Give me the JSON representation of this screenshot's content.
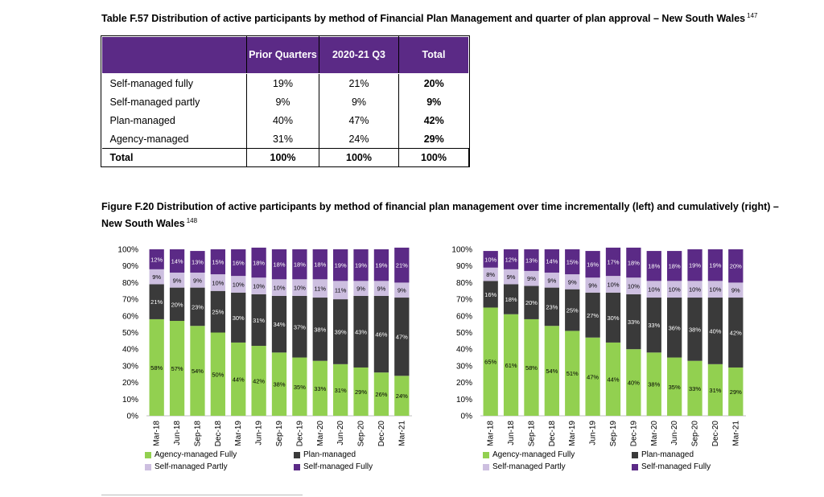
{
  "table": {
    "title": "Table F.57 Distribution of active participants by method of Financial Plan Management and quarter of plan approval – New South Wales",
    "footnote": "147",
    "headers": [
      "",
      "Prior Quarters",
      "2020-21 Q3",
      "Total"
    ],
    "rows": [
      {
        "label": "Self-managed fully",
        "prior": "19%",
        "q3": "21%",
        "total": "20%"
      },
      {
        "label": "Self-managed partly",
        "prior": "9%",
        "q3": "9%",
        "total": "9%"
      },
      {
        "label": "Plan-managed",
        "prior": "40%",
        "q3": "47%",
        "total": "42%"
      },
      {
        "label": "Agency-managed",
        "prior": "31%",
        "q3": "24%",
        "total": "29%"
      }
    ],
    "total_row": {
      "label": "Total",
      "prior": "100%",
      "q3": "100%",
      "total": "100%"
    }
  },
  "figure": {
    "title": "Figure F.20 Distribution of active participants by method of financial plan management over time incrementally (left) and cumulatively (right) – New South Wales",
    "footnote": "148"
  },
  "colors": {
    "agency": "#92d050",
    "plan": "#3a3a3a",
    "partly": "#cdbfe0",
    "fully": "#5b2a86",
    "header": "#5b2a86"
  },
  "chart_data": [
    {
      "type": "bar",
      "stacked": true,
      "categories": [
        "Mar-18",
        "Jun-18",
        "Sep-18",
        "Dec-18",
        "Mar-19",
        "Jun-19",
        "Sep-19",
        "Dec-19",
        "Mar-20",
        "Jun-20",
        "Sep-20",
        "Dec-20",
        "Mar-21"
      ],
      "yticks": [
        "0%",
        "10%",
        "20%",
        "30%",
        "40%",
        "50%",
        "60%",
        "70%",
        "80%",
        "90%",
        "100%"
      ],
      "ylim": [
        0,
        100
      ],
      "legend_position": "bottom",
      "series": [
        {
          "name": "Agency-managed Fully",
          "color_key": "agency",
          "values": [
            58,
            57,
            54,
            50,
            44,
            42,
            38,
            35,
            33,
            31,
            29,
            26,
            24
          ]
        },
        {
          "name": "Plan-managed",
          "color_key": "plan",
          "values": [
            21,
            20,
            23,
            25,
            30,
            31,
            34,
            37,
            38,
            39,
            43,
            46,
            47
          ]
        },
        {
          "name": "Self-managed Partly",
          "color_key": "partly",
          "values": [
            9,
            9,
            9,
            10,
            10,
            10,
            10,
            10,
            11,
            11,
            9,
            9,
            9
          ]
        },
        {
          "name": "Self-managed Fully",
          "color_key": "fully",
          "values": [
            12,
            14,
            13,
            15,
            16,
            18,
            18,
            18,
            18,
            19,
            19,
            19,
            21
          ]
        }
      ]
    },
    {
      "type": "bar",
      "stacked": true,
      "categories": [
        "Mar-18",
        "Jun-18",
        "Sep-18",
        "Dec-18",
        "Mar-19",
        "Jun-19",
        "Sep-19",
        "Dec-19",
        "Mar-20",
        "Jun-20",
        "Sep-20",
        "Dec-20",
        "Mar-21"
      ],
      "yticks": [
        "0%",
        "10%",
        "20%",
        "30%",
        "40%",
        "50%",
        "60%",
        "70%",
        "80%",
        "90%",
        "100%"
      ],
      "ylim": [
        0,
        100
      ],
      "legend_position": "bottom",
      "series": [
        {
          "name": "Agency-managed Fully",
          "color_key": "agency",
          "values": [
            65,
            61,
            58,
            54,
            51,
            47,
            44,
            40,
            38,
            35,
            33,
            31,
            29
          ]
        },
        {
          "name": "Plan-managed",
          "color_key": "plan",
          "values": [
            16,
            18,
            20,
            23,
            25,
            27,
            30,
            33,
            33,
            36,
            38,
            40,
            42
          ]
        },
        {
          "name": "Self-managed Partly",
          "color_key": "partly",
          "values": [
            8,
            9,
            9,
            9,
            9,
            9,
            10,
            10,
            10,
            10,
            10,
            10,
            9
          ]
        },
        {
          "name": "Self-managed Fully",
          "color_key": "fully",
          "values": [
            10,
            12,
            13,
            14,
            15,
            16,
            17,
            18,
            18,
            18,
            19,
            19,
            20
          ]
        }
      ]
    }
  ]
}
